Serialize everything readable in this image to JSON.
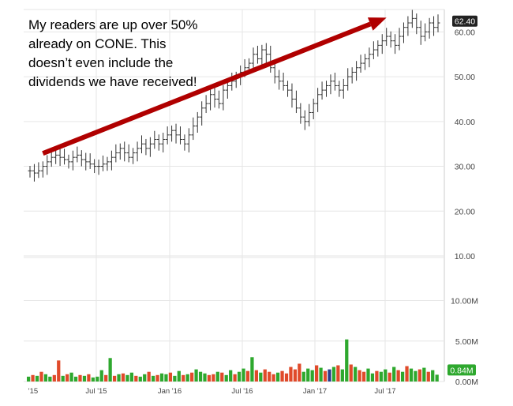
{
  "chart_data": {
    "type": "bar",
    "title": "",
    "annotation_lines": [
      "My readers are up over 50%",
      "already on CONE. This",
      "doesn’t even include the",
      "dividends we have received!"
    ],
    "price_panel": {
      "type": "ohlc",
      "ylim": [
        10,
        65
      ],
      "yticks": [
        "10.00",
        "20.00",
        "30.00",
        "40.00",
        "50.00",
        "60.00"
      ],
      "last_price_label": "62.40",
      "last_price": 62.4,
      "series_weekly_close": [
        29,
        28.5,
        29,
        30,
        31,
        32,
        32.5,
        32,
        31.5,
        31,
        32,
        32.5,
        31.5,
        31,
        30.5,
        30,
        30,
        30.5,
        31,
        32,
        33,
        34,
        33,
        32,
        33,
        34,
        35,
        34,
        35,
        36,
        35,
        36,
        37,
        38,
        37,
        36,
        35,
        37,
        39,
        41,
        43,
        44,
        46,
        45,
        44,
        47,
        48,
        49,
        50,
        51,
        52,
        53,
        55,
        54,
        56,
        55,
        52,
        50,
        49,
        48,
        47,
        45,
        43,
        41,
        40,
        42,
        44,
        46,
        47,
        48,
        49,
        48,
        47,
        48,
        50,
        51,
        52,
        53,
        54,
        55,
        56,
        57,
        58,
        59,
        58,
        57,
        59,
        61,
        62,
        63,
        61,
        59,
        60,
        62,
        61,
        62
      ],
      "arrow": {
        "from": {
          "x": "Oct '14",
          "y": 32
        },
        "to": {
          "x": "Sep '17",
          "y": 60
        }
      },
      "colors": {
        "bars": "#333333",
        "arrow": "#b00000",
        "label_bg": "#222222",
        "label_text": "#ffffff"
      }
    },
    "volume_panel": {
      "type": "bar",
      "ylim": [
        0,
        12
      ],
      "unit": "M",
      "yticks": [
        "0.00M",
        "5.00M",
        "10.00M"
      ],
      "last_volume_label": "0.84M",
      "last_volume": 0.84,
      "values": [
        0.6,
        0.8,
        0.7,
        1.2,
        0.9,
        0.6,
        0.8,
        2.6,
        0.7,
        0.9,
        1.1,
        0.6,
        0.8,
        0.7,
        0.9,
        0.5,
        0.6,
        1.4,
        0.8,
        2.9,
        0.7,
        0.9,
        1.0,
        0.8,
        1.1,
        0.7,
        0.6,
        0.9,
        1.2,
        0.7,
        0.8,
        1.0,
        0.9,
        1.1,
        0.7,
        1.3,
        0.8,
        0.9,
        1.1,
        1.5,
        1.2,
        1.0,
        0.8,
        0.9,
        1.2,
        1.1,
        0.8,
        1.4,
        0.9,
        1.2,
        1.6,
        1.3,
        3.0,
        1.4,
        1.1,
        1.5,
        1.2,
        0.9,
        1.1,
        1.3,
        1.0,
        1.8,
        1.5,
        2.2,
        1.2,
        1.6,
        1.4,
        2.0,
        1.7,
        1.3,
        1.5,
        1.8,
        2.0,
        1.5,
        5.2,
        2.1,
        1.8,
        1.4,
        1.2,
        1.6,
        1.0,
        1.3,
        1.2,
        1.5,
        1.1,
        1.8,
        1.4,
        1.2,
        1.9,
        1.6,
        1.3,
        1.5,
        1.7,
        1.2,
        1.4,
        0.84
      ],
      "up": [
        1,
        0,
        1,
        0,
        1,
        1,
        0,
        0,
        1,
        0,
        1,
        1,
        0,
        1,
        0,
        1,
        1,
        1,
        0,
        1,
        0,
        1,
        0,
        1,
        1,
        0,
        1,
        1,
        0,
        1,
        0,
        1,
        1,
        0,
        1,
        1,
        0,
        1,
        0,
        1,
        1,
        1,
        0,
        0,
        1,
        0,
        1,
        1,
        0,
        1,
        1,
        0,
        1,
        0,
        1,
        0,
        0,
        0,
        1,
        0,
        0,
        0,
        0,
        0,
        1,
        1,
        1,
        0,
        1,
        0,
        1,
        1,
        0,
        1,
        1,
        0,
        1,
        0,
        0,
        1,
        1,
        0,
        1,
        1,
        0,
        1,
        0,
        1,
        0,
        1,
        1,
        0,
        1,
        0,
        1,
        1
      ],
      "colors": {
        "up": "#2ea82e",
        "down": "#e04a2a",
        "neutral": "#2a3c8c",
        "label_bg": "#2ea82e",
        "label_text": "#ffffff"
      }
    },
    "x_ticks": [
      "'15",
      "Jul '15",
      "Jan '16",
      "Jul '16",
      "Jan '17",
      "Jul '17"
    ],
    "grid": true,
    "axis_side": "right",
    "colors": {
      "grid": "#e6e6e6",
      "axis_text": "#444444",
      "border": "#cccccc"
    }
  }
}
